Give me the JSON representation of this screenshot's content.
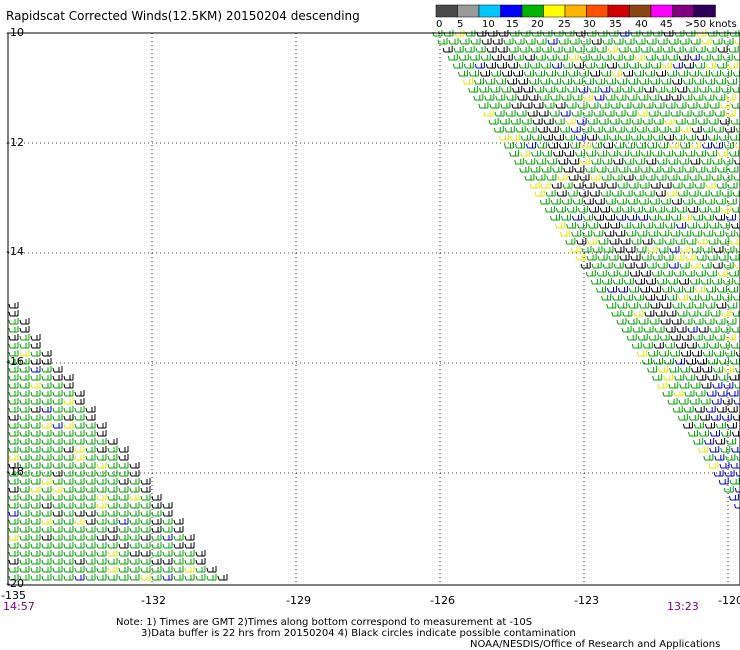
{
  "title": "Rapidscat Corrected Winds(12.5KM) 20150204 descending",
  "scale": {
    "labels": [
      "0",
      "5",
      "10",
      "15",
      "20",
      "25",
      "30",
      "35",
      "40",
      "45",
      ">50 knots"
    ],
    "colors": [
      "#4a4a4a",
      "#9a9a9a",
      "#00c8ff",
      "#0000ff",
      "#00b400",
      "#ffff00",
      "#ffb400",
      "#ff5000",
      "#d00000",
      "#8b4513",
      "#ff00ff",
      "#800080",
      "#2d005a"
    ]
  },
  "axes": {
    "lat_labels": [
      "-10",
      "-12",
      "-14",
      "-16",
      "-18",
      "-20"
    ],
    "lon_labels": [
      "-135",
      "-132",
      "-129",
      "-126",
      "-123",
      "-120"
    ]
  },
  "times": {
    "left": "14:57",
    "right": "13:23"
  },
  "notes": {
    "line1": "Note: 1) Times are GMT 2)Times along bottom correspond to measurement at -10S",
    "line2": "3)Data buffer is 22 hrs from 20150204 4) Black circles indicate possible contamination",
    "line3": "NOAA/NESDIS/Office of Research and Applications"
  }
}
